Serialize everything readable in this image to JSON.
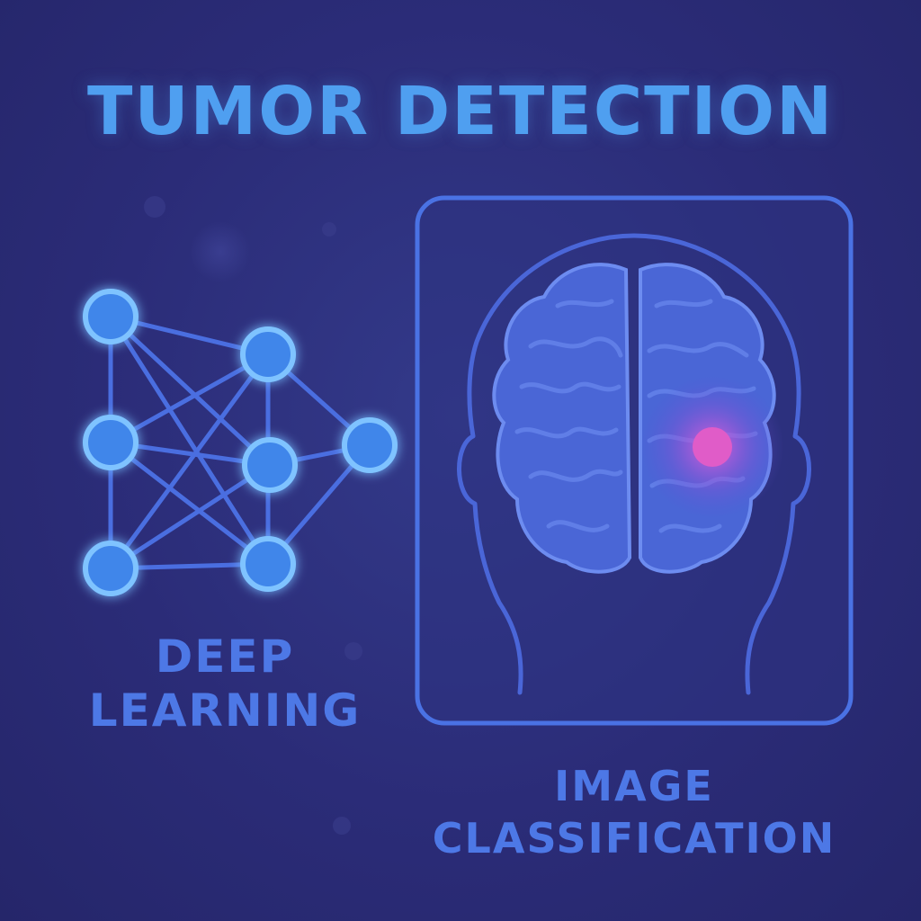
{
  "title": "TUMOR DETECTION",
  "network": {
    "caption_line1": "DEEP",
    "caption_line2": "LEARNING"
  },
  "classification": {
    "caption_line1": "IMAGE",
    "caption_line2": "CLASSIFICATION",
    "tumor_marker": "tumor-highlight"
  },
  "colors": {
    "background": "#2b2c78",
    "title": "#4f9ff0",
    "caption": "#4d78e6",
    "node_fill": "#3f86ea",
    "node_stroke": "#7fc3ff",
    "line": "#4a6ee0",
    "frame": "#4a72e4",
    "brain": "#4b64d6",
    "tumor": "#e05cc8"
  }
}
